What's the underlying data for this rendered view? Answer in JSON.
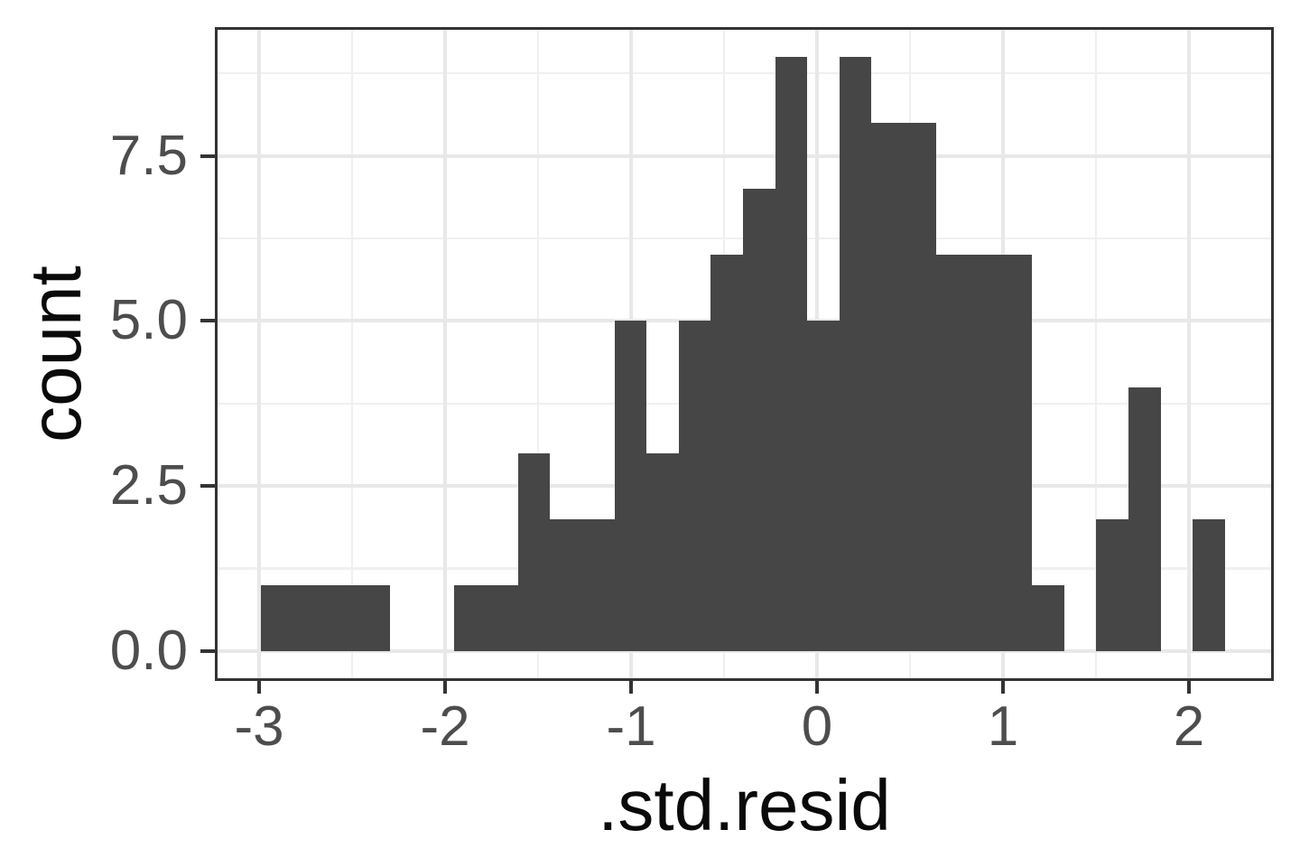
{
  "figure": {
    "background": "#ffffff"
  },
  "chart_data": {
    "type": "bar",
    "geom": "histogram",
    "title": "",
    "xlabel": ".std.resid",
    "ylabel": "count",
    "bin_edges": [
      -2.989,
      -2.817,
      -2.644,
      -2.471,
      -2.298,
      -2.126,
      -1.953,
      -1.78,
      -1.607,
      -1.435,
      -1.262,
      -1.089,
      -0.916,
      -0.743,
      -0.571,
      -0.398,
      -0.225,
      -0.052,
      0.12,
      0.293,
      0.466,
      0.639,
      0.811,
      0.984,
      1.157,
      1.33,
      1.502,
      1.675,
      1.848,
      2.021,
      2.193
    ],
    "counts": [
      1,
      1,
      1,
      1,
      0,
      0,
      1,
      1,
      3,
      2,
      2,
      5,
      3,
      5,
      6,
      7,
      9,
      5,
      9,
      8,
      8,
      6,
      6,
      6,
      1,
      0,
      2,
      4,
      0,
      2
    ],
    "binwidth": 0.173,
    "x_ticks": {
      "values": [
        -3,
        -2,
        -1,
        0,
        1,
        2
      ],
      "labels": [
        "-3",
        "-2",
        "-1",
        "0",
        "1",
        "2"
      ]
    },
    "y_ticks": {
      "values": [
        0,
        2.5,
        5,
        7.5
      ],
      "labels": [
        "0.0",
        "2.5",
        "5.0",
        "7.5"
      ]
    },
    "x_minor_ticks": [
      -2.5,
      -1.5,
      -0.5,
      0.5,
      1.5
    ],
    "y_minor_ticks": [
      1.25,
      3.75,
      6.25,
      8.75
    ],
    "xlim": [
      -3.238,
      2.456
    ],
    "ylim": [
      -0.45,
      9.45
    ],
    "grid": "on",
    "legend": "none",
    "colors": {
      "bar_fill": "#464646",
      "panel_border": "#333333",
      "tick_mark": "#333333",
      "major_grid": "#e8e8e8",
      "minor_grid": "#f0f0f0",
      "tick_label": "#4d4d4d",
      "axis_title": "#0a0a0a",
      "background": "#ffffff"
    }
  }
}
